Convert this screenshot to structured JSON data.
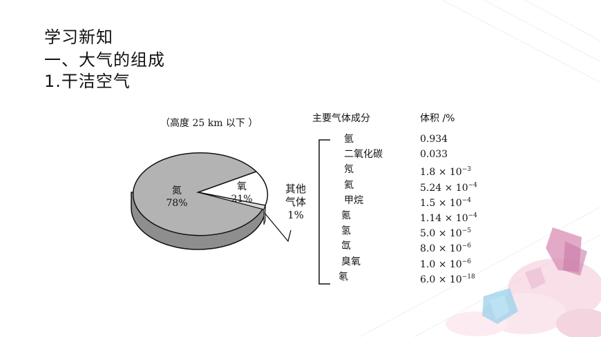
{
  "headings": {
    "section": "学习新知",
    "topic": "一、大气的组成",
    "subtopic": "1.干洁空气"
  },
  "figure": {
    "caption": "（高度 25  km 以下 ）",
    "pie": {
      "nitrogen": {
        "name": "氮",
        "value": "78%"
      },
      "oxygen": {
        "name": "氧",
        "value": "21%"
      },
      "other": {
        "name_line1": "其他",
        "name_line2": "气体",
        "value": "1%"
      }
    },
    "slices_percent": [
      78,
      21,
      1
    ]
  },
  "table": {
    "header_gas": "主要气体成分",
    "header_volume": "体积 /%",
    "rows": [
      {
        "gas": "氩",
        "mantissa": "0.934",
        "exp": ""
      },
      {
        "gas": "二氧化碳",
        "mantissa": "0.033",
        "exp": ""
      },
      {
        "gas": "氖",
        "mantissa": "1.8 × 10",
        "exp": "−3"
      },
      {
        "gas": "氦",
        "mantissa": "5.24 × 10",
        "exp": "−4"
      },
      {
        "gas": "甲烷",
        "mantissa": "1.5 × 10",
        "exp": "−4"
      },
      {
        "gas": "氪",
        "mantissa": "1.14 × 10",
        "exp": "−4"
      },
      {
        "gas": "氢",
        "mantissa": "5.0 × 10",
        "exp": "−5"
      },
      {
        "gas": "氙",
        "mantissa": "8.0 × 10",
        "exp": "−6"
      },
      {
        "gas": "臭氧",
        "mantissa": "1.0 × 10",
        "exp": "−6"
      },
      {
        "gas": "氡",
        "mantissa": "6.0 × 10",
        "exp": "−18"
      }
    ]
  }
}
